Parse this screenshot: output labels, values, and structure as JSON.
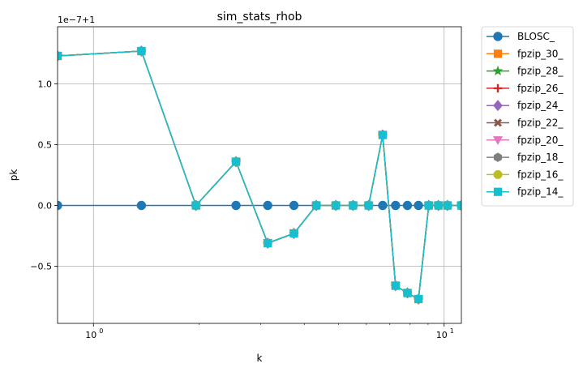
{
  "chart_data": {
    "type": "line",
    "title": "sim_stats_rhob",
    "xlabel": "k",
    "ylabel": "pk",
    "x_scale": "log",
    "xlim": [
      0.79,
      11.2
    ],
    "ylim": [
      -0.97,
      1.47
    ],
    "offset_text": "1e−7+1",
    "x_ticks": [
      {
        "value": 1,
        "label": "10",
        "exp": "0"
      },
      {
        "value": 10,
        "label": "10",
        "exp": "1"
      }
    ],
    "y_ticks": [
      {
        "value": -0.5,
        "label": "−0.5"
      },
      {
        "value": 0.0,
        "label": "0.0"
      },
      {
        "value": 0.5,
        "label": "0.5"
      },
      {
        "value": 1.0,
        "label": "1.0"
      }
    ],
    "grid": true,
    "legend_position": "outside-right",
    "x": [
      0.79,
      1.37,
      1.96,
      2.55,
      3.14,
      3.73,
      4.32,
      4.91,
      5.5,
      6.09,
      6.68,
      7.27,
      7.86,
      8.45,
      9.04,
      9.63,
      10.22,
      11.2
    ],
    "series": [
      {
        "name": "BLOSC_",
        "color": "#1f77b4",
        "marker": "circle",
        "values": [
          0,
          0,
          0,
          0,
          0,
          0,
          0,
          0,
          0,
          0,
          0,
          0,
          0,
          0,
          0,
          0,
          0,
          0
        ]
      },
      {
        "name": "fpzip_30_",
        "color": "#ff7f0e",
        "marker": "square",
        "values": [
          1.23,
          1.27,
          0.0,
          0.36,
          -0.31,
          -0.23,
          0.0,
          0.0,
          0.0,
          0.0,
          0.58,
          -0.66,
          -0.72,
          -0.77,
          0.0,
          0.0,
          0.0,
          0.0
        ]
      },
      {
        "name": "fpzip_28_",
        "color": "#2ca02c",
        "marker": "star",
        "values": [
          1.23,
          1.27,
          0.0,
          0.36,
          -0.31,
          -0.23,
          0.0,
          0.0,
          0.0,
          0.0,
          0.58,
          -0.66,
          -0.72,
          -0.77,
          0.0,
          0.0,
          0.0,
          0.0
        ]
      },
      {
        "name": "fpzip_26_",
        "color": "#d62728",
        "marker": "plus",
        "values": [
          1.23,
          1.27,
          0.0,
          0.36,
          -0.31,
          -0.23,
          0.0,
          0.0,
          0.0,
          0.0,
          0.58,
          -0.66,
          -0.72,
          -0.77,
          0.0,
          0.0,
          0.0,
          0.0
        ]
      },
      {
        "name": "fpzip_24_",
        "color": "#9467bd",
        "marker": "diamond",
        "values": [
          1.23,
          1.27,
          0.0,
          0.36,
          -0.31,
          -0.23,
          0.0,
          0.0,
          0.0,
          0.0,
          0.58,
          -0.66,
          -0.72,
          -0.77,
          0.0,
          0.0,
          0.0,
          0.0
        ]
      },
      {
        "name": "fpzip_22_",
        "color": "#8c564b",
        "marker": "x",
        "values": [
          1.23,
          1.27,
          0.0,
          0.36,
          -0.31,
          -0.23,
          0.0,
          0.0,
          0.0,
          0.0,
          0.58,
          -0.66,
          -0.72,
          -0.77,
          0.0,
          0.0,
          0.0,
          0.0
        ]
      },
      {
        "name": "fpzip_20_",
        "color": "#e377c2",
        "marker": "triangle-down",
        "values": [
          1.23,
          1.27,
          0.0,
          0.36,
          -0.31,
          -0.23,
          0.0,
          0.0,
          0.0,
          0.0,
          0.58,
          -0.66,
          -0.72,
          -0.77,
          0.0,
          0.0,
          0.0,
          0.0
        ]
      },
      {
        "name": "fpzip_18_",
        "color": "#7f7f7f",
        "marker": "hexagon",
        "values": [
          1.23,
          1.27,
          0.0,
          0.36,
          -0.31,
          -0.23,
          0.0,
          0.0,
          0.0,
          0.0,
          0.58,
          -0.66,
          -0.72,
          -0.77,
          0.0,
          0.0,
          0.0,
          0.0
        ]
      },
      {
        "name": "fpzip_16_",
        "color": "#bcbd22",
        "marker": "octagon",
        "values": [
          1.23,
          1.27,
          0.0,
          0.36,
          -0.31,
          -0.23,
          0.0,
          0.0,
          0.0,
          0.0,
          0.58,
          -0.66,
          -0.72,
          -0.77,
          0.0,
          0.0,
          0.0,
          0.0
        ]
      },
      {
        "name": "fpzip_14_",
        "color": "#17becf",
        "marker": "square",
        "values": [
          1.23,
          1.27,
          0.0,
          0.36,
          -0.31,
          -0.23,
          0.0,
          0.0,
          0.0,
          0.0,
          0.58,
          -0.66,
          -0.72,
          -0.77,
          0.0,
          0.0,
          0.0,
          0.0
        ]
      }
    ]
  }
}
